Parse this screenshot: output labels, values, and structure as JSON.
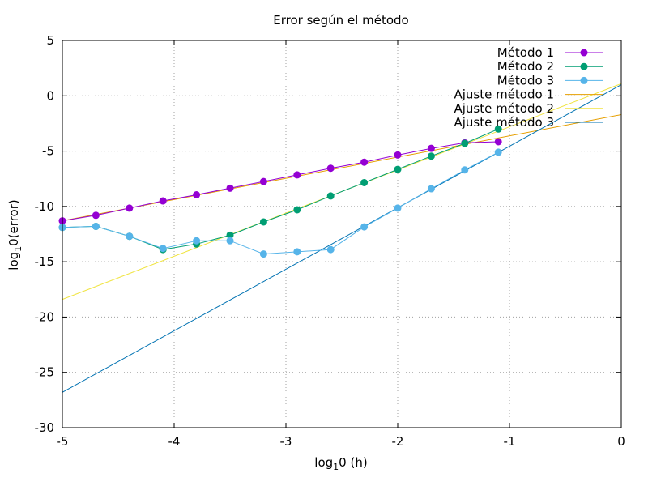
{
  "chart_data": {
    "type": "line",
    "title": "Error según el método",
    "xlabel": {
      "prefix": "log",
      "sub": "1",
      "suffix": "0 (h)"
    },
    "ylabel": {
      "prefix": "log",
      "sub": "1",
      "suffix": "0(error)"
    },
    "xlim": [
      -5,
      0
    ],
    "ylim": [
      -30,
      5
    ],
    "xticks": [
      -5,
      -4,
      -3,
      -2,
      -1,
      0
    ],
    "yticks": [
      -30,
      -25,
      -20,
      -15,
      -10,
      -5,
      0,
      5
    ],
    "grid": true,
    "legend_position": "top-right",
    "series": [
      {
        "name": "Método 1",
        "color": "#9400d3",
        "marker": true,
        "x": [
          -5.0,
          -4.7,
          -4.4,
          -4.1,
          -3.8,
          -3.5,
          -3.2,
          -2.9,
          -2.6,
          -2.3,
          -2.0,
          -1.7,
          -1.4,
          -1.1
        ],
        "y": [
          -11.3,
          -10.8,
          -10.15,
          -9.5,
          -8.95,
          -8.35,
          -7.75,
          -7.15,
          -6.55,
          -6.0,
          -5.35,
          -4.75,
          -4.25,
          -4.15
        ]
      },
      {
        "name": "Método 2",
        "color": "#009e73",
        "marker": true,
        "x": [
          -5.0,
          -4.7,
          -4.4,
          -4.1,
          -3.8,
          -3.5,
          -3.2,
          -2.9,
          -2.6,
          -2.3,
          -2.0,
          -1.7,
          -1.4,
          -1.1
        ],
        "y": [
          -11.9,
          -11.8,
          -12.7,
          -13.9,
          -13.4,
          -12.6,
          -11.4,
          -10.3,
          -9.05,
          -7.85,
          -6.65,
          -5.45,
          -4.3,
          -3.0
        ]
      },
      {
        "name": "Método 3",
        "color": "#56b4e9",
        "marker": true,
        "x": [
          -5.0,
          -4.7,
          -4.4,
          -4.1,
          -3.8,
          -3.5,
          -3.2,
          -2.9,
          -2.6,
          -2.3,
          -2.0,
          -1.7,
          -1.4,
          -1.1
        ],
        "y": [
          -11.9,
          -11.8,
          -12.7,
          -13.8,
          -13.1,
          -13.1,
          -14.3,
          -14.1,
          -13.9,
          -11.85,
          -10.15,
          -8.4,
          -6.7,
          -5.1
        ]
      },
      {
        "name": "Ajuste método 1",
        "color": "#e69f00",
        "marker": false,
        "x": [
          -5.0,
          0.0
        ],
        "y": [
          -11.3,
          -1.7
        ]
      },
      {
        "name": "Ajuste método 2",
        "color": "#f0e442",
        "marker": false,
        "x": [
          -5.0,
          0.0
        ],
        "y": [
          -18.4,
          1.1
        ]
      },
      {
        "name": "Ajuste método 3",
        "color": "#0072b2",
        "marker": false,
        "x": [
          -5.0,
          0.0
        ],
        "y": [
          -26.8,
          1.0
        ]
      }
    ]
  }
}
